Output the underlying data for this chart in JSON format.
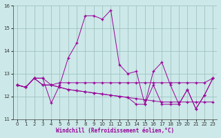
{
  "xlabel": "Windchill (Refroidissement éolien,°C)",
  "bg_color": "#cce8e8",
  "line_color": "#990099",
  "x": [
    0,
    1,
    2,
    3,
    4,
    5,
    6,
    7,
    8,
    9,
    10,
    11,
    12,
    13,
    14,
    15,
    16,
    17,
    18,
    19,
    20,
    21,
    22,
    23
  ],
  "series1": [
    12.5,
    12.4,
    12.8,
    12.8,
    11.7,
    12.5,
    13.7,
    14.35,
    15.55,
    15.55,
    15.4,
    15.8,
    13.4,
    13.0,
    13.1,
    11.65,
    13.1,
    13.5,
    12.5,
    11.65,
    12.3,
    11.45,
    12.05,
    12.8
  ],
  "series2": [
    12.5,
    12.4,
    12.8,
    12.8,
    12.5,
    12.6,
    12.6,
    12.6,
    12.6,
    12.6,
    12.6,
    12.6,
    12.6,
    12.6,
    12.6,
    12.6,
    12.6,
    12.6,
    12.6,
    12.6,
    12.6,
    12.6,
    12.6,
    12.8
  ],
  "series3": [
    12.5,
    12.4,
    12.8,
    12.5,
    12.5,
    12.4,
    12.3,
    12.25,
    12.2,
    12.15,
    12.1,
    12.05,
    12.0,
    11.95,
    11.9,
    11.85,
    11.8,
    11.75,
    11.75,
    11.75,
    11.75,
    11.75,
    11.75,
    11.75
  ],
  "series4": [
    12.5,
    12.4,
    12.8,
    12.5,
    12.5,
    12.4,
    12.3,
    12.25,
    12.2,
    12.15,
    12.1,
    12.05,
    12.0,
    11.95,
    11.65,
    11.65,
    12.5,
    11.65,
    11.65,
    11.65,
    12.3,
    11.45,
    12.05,
    12.8
  ],
  "ylim": [
    11,
    16
  ],
  "xlim": [
    -0.5,
    23.5
  ],
  "yticks": [
    11,
    12,
    13,
    14,
    15,
    16
  ],
  "xticks": [
    0,
    1,
    2,
    3,
    4,
    5,
    6,
    7,
    8,
    9,
    10,
    11,
    12,
    13,
    14,
    15,
    16,
    17,
    18,
    19,
    20,
    21,
    22,
    23
  ],
  "grid_color": "#99bbbb"
}
